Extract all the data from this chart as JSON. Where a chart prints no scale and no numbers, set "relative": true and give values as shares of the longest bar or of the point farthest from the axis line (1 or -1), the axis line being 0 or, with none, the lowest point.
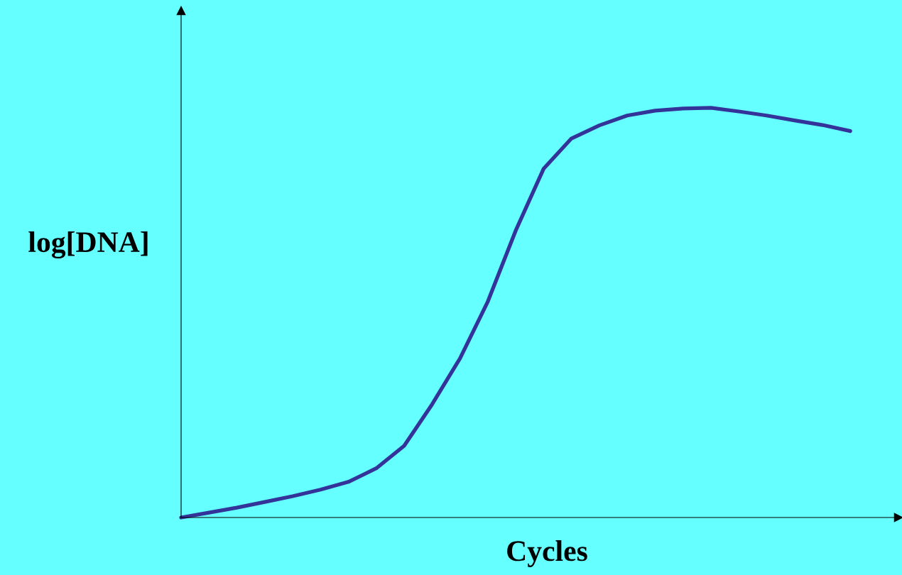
{
  "chart_data": {
    "type": "line",
    "relative": true,
    "xlabel": "Cycles",
    "ylabel": "log[DNA]",
    "color": "#333399",
    "categories": [
      null,
      null,
      null,
      null,
      null,
      null,
      null,
      null,
      null,
      null,
      null,
      null,
      null,
      null,
      null,
      null,
      null,
      null,
      null,
      null,
      null,
      null,
      null,
      null,
      null
    ],
    "values": [
      0,
      0.012,
      0.024,
      0.038,
      0.052,
      0.068,
      0.087,
      0.12,
      0.175,
      0.276,
      0.388,
      0.527,
      0.7,
      0.851,
      0.925,
      0.957,
      0.981,
      0.993,
      0.998,
      1.0,
      0.991,
      0.981,
      0.969,
      0.958,
      0.943
    ]
  }
}
